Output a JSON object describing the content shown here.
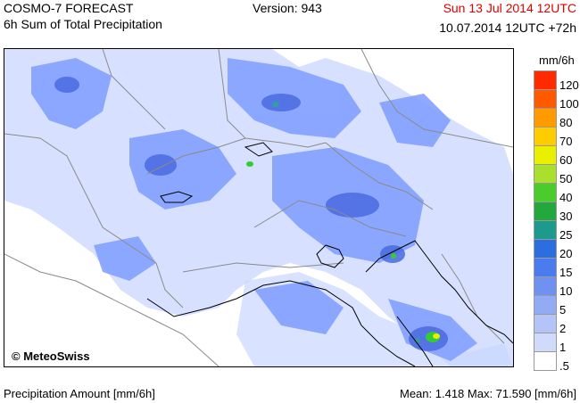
{
  "header": {
    "title": "COSMO-7 FORECAST",
    "subtitle": "6h Sum of Total Precipitation",
    "version": "Version: 943",
    "valid_date": "Sun 13 Jul 2014 12UTC",
    "run_info": "10.07.2014 12UTC +72h"
  },
  "map": {
    "copyright": "© MeteoSwiss",
    "colors": {
      "light_blue": "#c9d7ff",
      "blue": "#7e9cff",
      "mid_blue": "#5c7cf0",
      "dark_blue": "#3f5ed6",
      "teal": "#2f9fa0",
      "green": "#33cc33",
      "yellow": "#e8f000"
    }
  },
  "legend": {
    "unit": "mm/6h",
    "classes": [
      {
        "label": "120",
        "color": "#ff2a00"
      },
      {
        "label": "100",
        "color": "#ff5a00"
      },
      {
        "label": "80",
        "color": "#ff9a00"
      },
      {
        "label": "70",
        "color": "#ffcc00"
      },
      {
        "label": "60",
        "color": "#e8f000"
      },
      {
        "label": "50",
        "color": "#a8e02c"
      },
      {
        "label": "40",
        "color": "#4ccc2c"
      },
      {
        "label": "30",
        "color": "#22a83c"
      },
      {
        "label": "25",
        "color": "#1d9a8c"
      },
      {
        "label": "20",
        "color": "#2c6ee0"
      },
      {
        "label": "15",
        "color": "#4a7cf0"
      },
      {
        "label": "10",
        "color": "#6f92f2"
      },
      {
        "label": "5",
        "color": "#93aaf4"
      },
      {
        "label": "2",
        "color": "#b4c4f7"
      },
      {
        "label": "1",
        "color": "#d0dbfa"
      },
      {
        "label": ".5",
        "color": "#ffffff"
      }
    ]
  },
  "footer": {
    "left": "Precipitation Amount [mm/6h]",
    "right": "Mean:  1.418 Max:  71.590 [mm/6h]"
  }
}
